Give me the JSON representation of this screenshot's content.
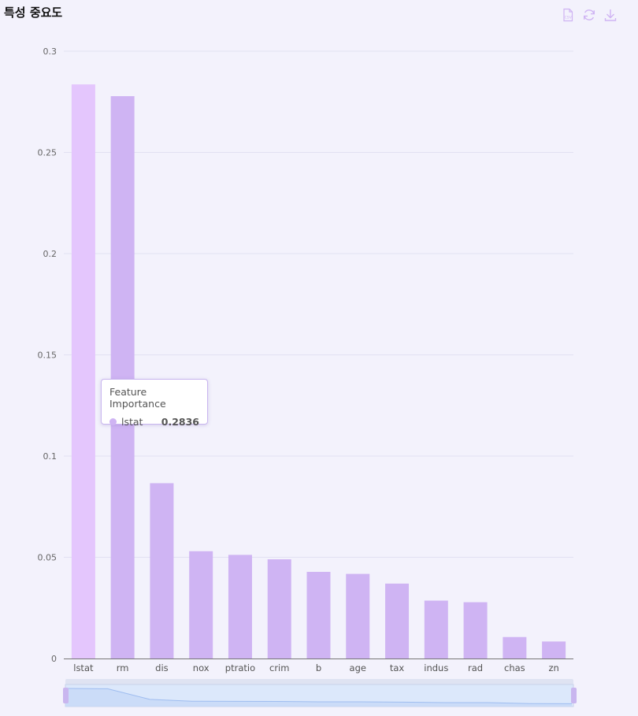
{
  "header": {
    "title": "특성 중요도"
  },
  "toolbar": {
    "items": [
      {
        "name": "csv-export",
        "icon": "csv-file-icon"
      },
      {
        "name": "refresh",
        "icon": "refresh-icon"
      },
      {
        "name": "download",
        "icon": "download-icon"
      }
    ]
  },
  "tooltip": {
    "title": "Feature Importance",
    "label": "lstat",
    "value": "0.2836"
  },
  "colors": {
    "bar": "#cfb4f3",
    "bar_highlight": "#e4c6fd",
    "grid": "#e2e1f2",
    "datazoom_fill": "#dce8fb",
    "datazoom_line": "#9fbdf0",
    "datazoom_handle": "#c9b6ef"
  },
  "chart_data": {
    "type": "bar",
    "categories": [
      "lstat",
      "rm",
      "dis",
      "nox",
      "ptratio",
      "crim",
      "b",
      "age",
      "tax",
      "indus",
      "rad",
      "chas",
      "zn"
    ],
    "series": [
      {
        "name": "Feature Importance",
        "values": [
          0.2836,
          0.2778,
          0.0866,
          0.053,
          0.0512,
          0.049,
          0.0428,
          0.0418,
          0.037,
          0.0286,
          0.0278,
          0.0106,
          0.0084
        ]
      }
    ],
    "yticks": [
      "0",
      "0.05",
      "0.1",
      "0.15",
      "0.2",
      "0.25",
      "0.3"
    ],
    "ylim": [
      0,
      0.3
    ],
    "grid": true,
    "highlighted_category": "lstat",
    "datazoom": true
  }
}
